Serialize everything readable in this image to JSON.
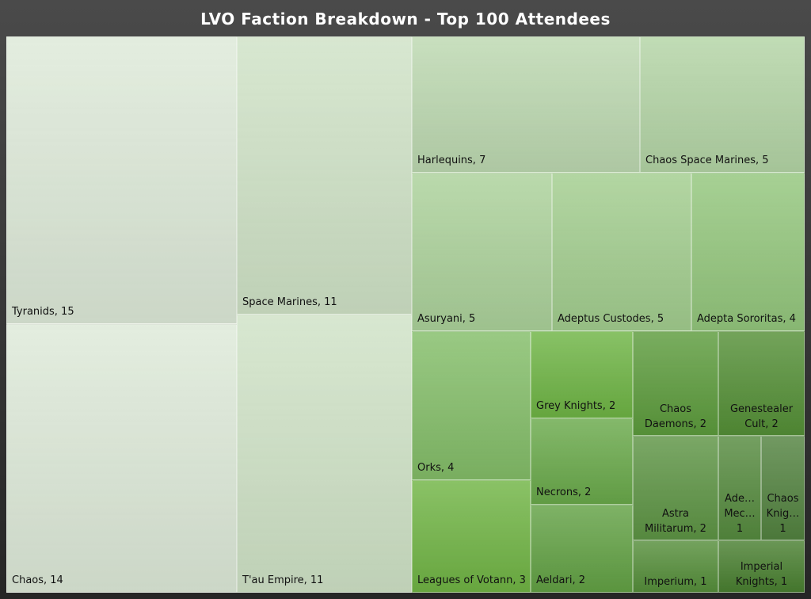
{
  "chart_data": {
    "type": "treemap",
    "title": "LVO Faction Breakdown - Top 100 Attendees",
    "unit": "attendees",
    "items": [
      {
        "name": "Tyranids",
        "value": 15,
        "label": "Tyranids, 15",
        "color": "#dde9d8"
      },
      {
        "name": "Chaos",
        "value": 14,
        "label": "Chaos, 14",
        "color": "#dde9d8"
      },
      {
        "name": "Space Marines",
        "value": 11,
        "label": "Space Marines, 11",
        "color": "#cfe2c6"
      },
      {
        "name": "T'au Empire",
        "value": 11,
        "label": "T'au Empire, 11",
        "color": "#cfe2c6"
      },
      {
        "name": "Harlequins",
        "value": 7,
        "label": "Harlequins, 7",
        "color": "#bcd8b0"
      },
      {
        "name": "Chaos Space Marines",
        "value": 5,
        "label": "Chaos Space Marines, 5",
        "color": "#b3d4a5"
      },
      {
        "name": "Asuryani",
        "value": 5,
        "label": "Asuryani, 5",
        "color": "#abd19a"
      },
      {
        "name": "Adeptus Custodes",
        "value": 5,
        "label": "Adeptus Custodes, 5",
        "color": "#a2cd8e"
      },
      {
        "name": "Adepta Sororitas",
        "value": 4,
        "label": "Adepta Sororitas, 4",
        "color": "#93c67c"
      },
      {
        "name": "Orks",
        "value": 4,
        "label": "Orks, 4",
        "color": "#83bd68"
      },
      {
        "name": "Leagues of Votann",
        "value": 3,
        "label": "Leagues of Votann, 3",
        "color": "#70b444"
      },
      {
        "name": "Grey Knights",
        "value": 2,
        "label": "Grey Knights, 2",
        "color": "#6eb444"
      },
      {
        "name": "Necrons",
        "value": 2,
        "label": "Necrons, 2",
        "color": "#69a94a"
      },
      {
        "name": "Aeldari",
        "value": 2,
        "label": "Aeldari, 2",
        "color": "#62a144"
      },
      {
        "name": "Chaos Daemons",
        "value": 2,
        "label": "Chaos\nDaemons, 2",
        "color": "#5c9b3c"
      },
      {
        "name": "Genestealer Cult",
        "value": 2,
        "label": "Genestealer\nCult, 2",
        "color": "#548f36"
      },
      {
        "name": "Astra Militarum",
        "value": 2,
        "label": "Astra\nMilitarum, 2",
        "color": "#5d9444"
      },
      {
        "name": "Adeptus Mechanicus",
        "value": 1,
        "label": "Ade…\nMec…\n1",
        "color": "#558a3e"
      },
      {
        "name": "Chaos Knights",
        "value": 1,
        "label": "Chaos\nKnig…\n1",
        "color": "#52823f"
      },
      {
        "name": "Imperium",
        "value": 1,
        "label": "Imperium, 1",
        "color": "#558e3a"
      },
      {
        "name": "Imperial Knights",
        "value": 1,
        "label": "Imperial\nKnights, 1",
        "color": "#497f30"
      }
    ]
  }
}
